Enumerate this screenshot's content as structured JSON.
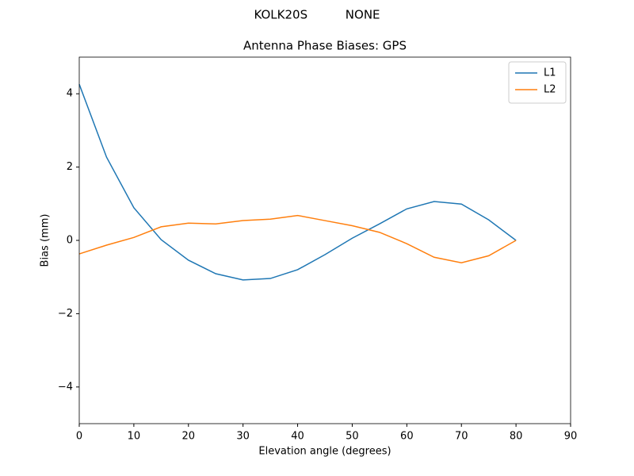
{
  "chart_data": {
    "type": "line",
    "suptitle": "KOLK20S          NONE",
    "title": "Antenna Phase Biases: GPS",
    "xlabel": "Elevation angle (degrees)",
    "ylabel": "Bias (mm)",
    "x": [
      0,
      5,
      10,
      15,
      20,
      25,
      30,
      35,
      40,
      45,
      50,
      55,
      60,
      65,
      70,
      75,
      80
    ],
    "series": [
      {
        "name": "L1",
        "color": "#1f77b4",
        "values": [
          4.26,
          2.27,
          0.89,
          0.02,
          -0.54,
          -0.91,
          -1.08,
          -1.04,
          -0.8,
          -0.39,
          0.06,
          0.45,
          0.86,
          1.06,
          0.99,
          0.56,
          0.0
        ]
      },
      {
        "name": "L2",
        "color": "#ff7f0e",
        "values": [
          -0.37,
          -0.13,
          0.08,
          0.37,
          0.47,
          0.45,
          0.54,
          0.58,
          0.68,
          0.54,
          0.4,
          0.22,
          -0.09,
          -0.46,
          -0.61,
          -0.42,
          0.0
        ]
      }
    ],
    "xlim": [
      0,
      90
    ],
    "xticks": [
      0,
      10,
      20,
      30,
      40,
      50,
      60,
      70,
      80,
      90
    ],
    "ylim": [
      -5,
      5
    ],
    "yticks": [
      {
        "value": -4,
        "label": "−4"
      },
      {
        "value": -2,
        "label": "−2"
      },
      0,
      2,
      4
    ],
    "legend": "upper right"
  }
}
